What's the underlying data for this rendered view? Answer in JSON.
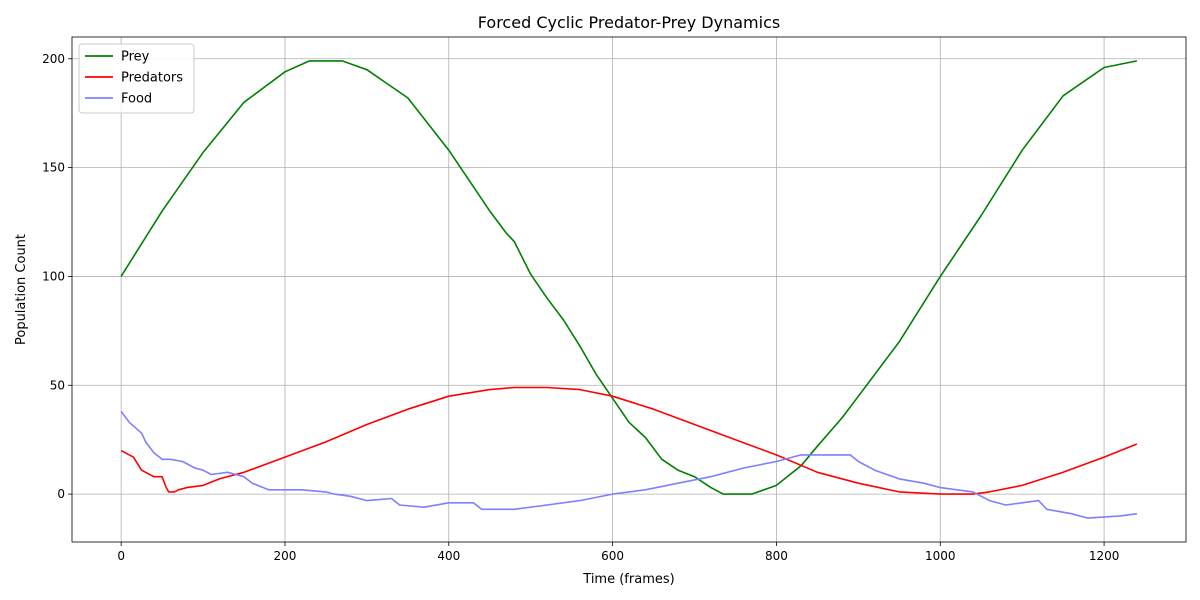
{
  "chart_data": {
    "type": "line",
    "title": "Forced Cyclic Predator-Prey Dynamics",
    "xlabel": "Time (frames)",
    "ylabel": "Population Count",
    "xlim": [
      -60,
      1300
    ],
    "ylim": [
      -22,
      210
    ],
    "xticks": [
      0,
      200,
      400,
      600,
      800,
      1000,
      1200
    ],
    "yticks": [
      0,
      50,
      100,
      150,
      200
    ],
    "xtick_labels": [
      "0",
      "200",
      "400",
      "600",
      "800",
      "1000",
      "1200"
    ],
    "ytick_labels": [
      "0",
      "50",
      "100",
      "150",
      "200"
    ],
    "grid": true,
    "legend_position": "top-left",
    "series": [
      {
        "name": "Prey",
        "color": "#008000",
        "points": [
          [
            0,
            100
          ],
          [
            50,
            130
          ],
          [
            100,
            157
          ],
          [
            150,
            180
          ],
          [
            200,
            194
          ],
          [
            230,
            199
          ],
          [
            270,
            199
          ],
          [
            300,
            195
          ],
          [
            350,
            182
          ],
          [
            400,
            158
          ],
          [
            450,
            130
          ],
          [
            470,
            120
          ],
          [
            480,
            116
          ],
          [
            500,
            101
          ],
          [
            520,
            90
          ],
          [
            540,
            80
          ],
          [
            560,
            68
          ],
          [
            580,
            55
          ],
          [
            600,
            44
          ],
          [
            620,
            33
          ],
          [
            640,
            26
          ],
          [
            660,
            16
          ],
          [
            680,
            11
          ],
          [
            700,
            8
          ],
          [
            720,
            3
          ],
          [
            735,
            0
          ],
          [
            770,
            0
          ],
          [
            800,
            4
          ],
          [
            830,
            13
          ],
          [
            850,
            22
          ],
          [
            880,
            35
          ],
          [
            900,
            45
          ],
          [
            950,
            70
          ],
          [
            1000,
            100
          ],
          [
            1050,
            128
          ],
          [
            1100,
            158
          ],
          [
            1150,
            183
          ],
          [
            1200,
            196
          ],
          [
            1240,
            199
          ]
        ]
      },
      {
        "name": "Predators",
        "color": "#ff0000",
        "points": [
          [
            0,
            20
          ],
          [
            15,
            17
          ],
          [
            25,
            11
          ],
          [
            40,
            8
          ],
          [
            50,
            8
          ],
          [
            55,
            3
          ],
          [
            58,
            1
          ],
          [
            65,
            1
          ],
          [
            70,
            2
          ],
          [
            80,
            3
          ],
          [
            100,
            4
          ],
          [
            120,
            7
          ],
          [
            150,
            10
          ],
          [
            200,
            17
          ],
          [
            250,
            24
          ],
          [
            300,
            32
          ],
          [
            350,
            39
          ],
          [
            400,
            45
          ],
          [
            450,
            48
          ],
          [
            480,
            49
          ],
          [
            520,
            49
          ],
          [
            560,
            48
          ],
          [
            600,
            45
          ],
          [
            650,
            39
          ],
          [
            700,
            32
          ],
          [
            750,
            25
          ],
          [
            800,
            18
          ],
          [
            850,
            10
          ],
          [
            900,
            5
          ],
          [
            950,
            1
          ],
          [
            1000,
            0
          ],
          [
            1040,
            0
          ],
          [
            1060,
            1
          ],
          [
            1100,
            4
          ],
          [
            1150,
            10
          ],
          [
            1200,
            17
          ],
          [
            1240,
            23
          ]
        ]
      },
      {
        "name": "Food",
        "color": "#7f7fff",
        "points": [
          [
            0,
            38
          ],
          [
            10,
            33
          ],
          [
            25,
            28
          ],
          [
            30,
            24
          ],
          [
            40,
            19
          ],
          [
            50,
            16
          ],
          [
            60,
            16
          ],
          [
            75,
            15
          ],
          [
            90,
            12
          ],
          [
            100,
            11
          ],
          [
            110,
            9
          ],
          [
            130,
            10
          ],
          [
            150,
            8
          ],
          [
            160,
            5
          ],
          [
            180,
            2
          ],
          [
            220,
            2
          ],
          [
            250,
            1
          ],
          [
            260,
            0
          ],
          [
            280,
            -1
          ],
          [
            300,
            -3
          ],
          [
            330,
            -2
          ],
          [
            340,
            -5
          ],
          [
            370,
            -6
          ],
          [
            400,
            -4
          ],
          [
            430,
            -4
          ],
          [
            440,
            -7
          ],
          [
            480,
            -7
          ],
          [
            520,
            -5
          ],
          [
            560,
            -3
          ],
          [
            600,
            0
          ],
          [
            640,
            2
          ],
          [
            680,
            5
          ],
          [
            720,
            8
          ],
          [
            760,
            12
          ],
          [
            800,
            15
          ],
          [
            830,
            18
          ],
          [
            850,
            18
          ],
          [
            890,
            18
          ],
          [
            900,
            15
          ],
          [
            920,
            11
          ],
          [
            950,
            7
          ],
          [
            980,
            5
          ],
          [
            1000,
            3
          ],
          [
            1040,
            1
          ],
          [
            1060,
            -3
          ],
          [
            1080,
            -5
          ],
          [
            1120,
            -3
          ],
          [
            1130,
            -7
          ],
          [
            1160,
            -9
          ],
          [
            1180,
            -11
          ],
          [
            1220,
            -10
          ],
          [
            1240,
            -9
          ]
        ]
      }
    ]
  }
}
